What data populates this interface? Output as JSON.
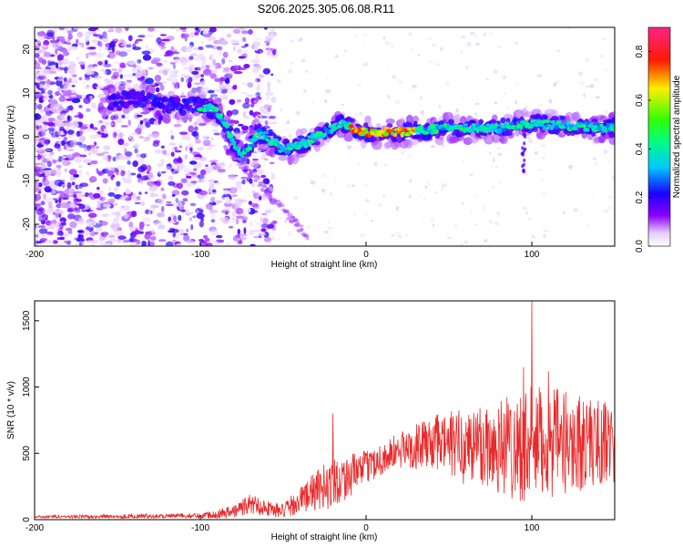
{
  "title": "S206.2025.305.06.08.R11",
  "chart_data": [
    {
      "type": "heatmap",
      "name": "spectrogram",
      "xlabel": "Height of straight line (km)",
      "ylabel": "Frequency (Hz)",
      "xlim": [
        -200,
        150
      ],
      "ylim": [
        -25,
        25
      ],
      "xticks": [
        "-200",
        "-100",
        "0",
        "100"
      ],
      "yticks": [
        "-20",
        "-10",
        "0",
        "10",
        "20"
      ],
      "colorbar": {
        "label": "Normalized spectral amplitude",
        "range": [
          0.0,
          0.9
        ],
        "ticks": [
          "0.0",
          "0.2",
          "0.4",
          "0.6",
          "0.8"
        ]
      },
      "ridge": [
        {
          "x": -150,
          "y": 8
        },
        {
          "x": -140,
          "y": 9
        },
        {
          "x": -120,
          "y": 7
        },
        {
          "x": -100,
          "y": 7
        },
        {
          "x": -90,
          "y": 6
        },
        {
          "x": -80,
          "y": -1
        },
        {
          "x": -75,
          "y": -5
        },
        {
          "x": -65,
          "y": 1
        },
        {
          "x": -60,
          "y": 0
        },
        {
          "x": -50,
          "y": -3
        },
        {
          "x": -40,
          "y": -2
        },
        {
          "x": -30,
          "y": 0
        },
        {
          "x": -15,
          "y": 3
        },
        {
          "x": 0,
          "y": 1
        },
        {
          "x": 20,
          "y": 1
        },
        {
          "x": 50,
          "y": 2
        },
        {
          "x": 80,
          "y": 2
        },
        {
          "x": 100,
          "y": 3
        },
        {
          "x": 150,
          "y": 2
        }
      ]
    },
    {
      "type": "line",
      "name": "snr",
      "xlabel": "Height of straight line (km)",
      "ylabel": "SNR (10 * v/v)",
      "xlim": [
        -200,
        150
      ],
      "ylim": [
        0,
        1650
      ],
      "xticks": [
        "-200",
        "-100",
        "0",
        "100"
      ],
      "yticks": [
        "0",
        "500",
        "1000",
        "1500"
      ],
      "color": "#e82a2a",
      "envelope": {
        "x": [
          -200,
          -150,
          -100,
          -80,
          -70,
          -60,
          -50,
          -40,
          -30,
          -20,
          -10,
          0,
          20,
          40,
          60,
          80,
          100,
          120,
          150
        ],
        "mean": [
          20,
          25,
          30,
          60,
          120,
          90,
          60,
          150,
          220,
          280,
          330,
          400,
          520,
          580,
          560,
          560,
          560,
          580,
          580
        ],
        "spread": [
          10,
          15,
          20,
          50,
          80,
          60,
          60,
          100,
          150,
          200,
          160,
          120,
          140,
          200,
          300,
          380,
          450,
          400,
          300
        ]
      },
      "spikes": [
        {
          "x": -20,
          "y": 800
        },
        {
          "x": 100,
          "y": 1650
        },
        {
          "x": 95,
          "y": 1150
        },
        {
          "x": 110,
          "y": 1120
        }
      ]
    }
  ]
}
